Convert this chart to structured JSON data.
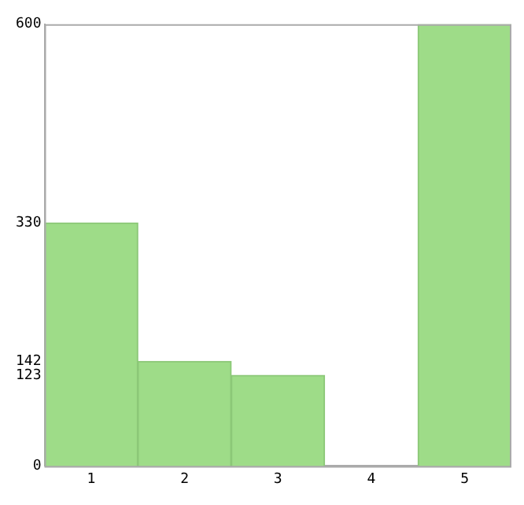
{
  "chart_data": {
    "type": "bar",
    "categories": [
      "1",
      "2",
      "3",
      "4",
      "5"
    ],
    "values": [
      330,
      142,
      123,
      0,
      600
    ],
    "color": "#9edc88",
    "ylim": [
      0,
      600
    ],
    "yticks": [
      0,
      123,
      142,
      330,
      600
    ],
    "grid": false,
    "legend": false
  }
}
